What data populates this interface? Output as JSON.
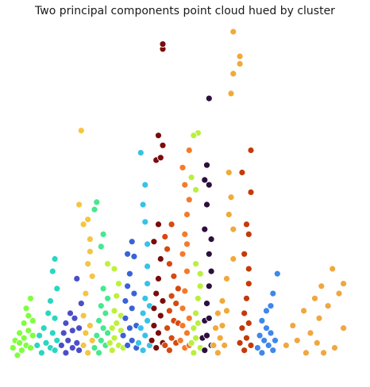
{
  "chart_data": {
    "type": "scatter",
    "title": "Two principal components point cloud hued by cluster",
    "xlabel": "",
    "ylabel": "",
    "axes_visible": false,
    "grid": false,
    "legend": "none",
    "xlim": [
      0,
      16
    ],
    "ylim": [
      0,
      14
    ],
    "series": [
      {
        "color": "#7fff3f",
        "points": [
          [
            0.3,
            1.2
          ],
          [
            0.4,
            1.5
          ],
          [
            0.5,
            0.9
          ],
          [
            0.6,
            1.4
          ],
          [
            0.6,
            1.8
          ],
          [
            0.7,
            1.1
          ],
          [
            0.8,
            2.2
          ],
          [
            0.8,
            1.6
          ],
          [
            0.9,
            2.8
          ],
          [
            0.9,
            1.3
          ],
          [
            1.0,
            1.9
          ],
          [
            1.0,
            2.5
          ],
          [
            1.1,
            1.2
          ],
          [
            1.1,
            3.2
          ],
          [
            1.2,
            1.7
          ],
          [
            1.2,
            2.3
          ]
        ]
      },
      {
        "color": "#2bd6c1",
        "points": [
          [
            1.4,
            1.3
          ],
          [
            1.5,
            1.7
          ],
          [
            1.6,
            1.0
          ],
          [
            1.7,
            2.0
          ],
          [
            1.8,
            1.4
          ],
          [
            1.9,
            2.6
          ],
          [
            2.0,
            1.2
          ],
          [
            2.0,
            3.1
          ],
          [
            2.1,
            1.8
          ],
          [
            2.1,
            4.3
          ],
          [
            2.2,
            2.4
          ],
          [
            2.2,
            1.1
          ],
          [
            2.3,
            3.6
          ],
          [
            2.3,
            1.5
          ],
          [
            2.2,
            4.8
          ]
        ]
      },
      {
        "color": "#4b4ec8",
        "points": [
          [
            2.5,
            1.3
          ],
          [
            2.6,
            1.8
          ],
          [
            2.7,
            1.0
          ],
          [
            2.7,
            2.2
          ],
          [
            2.8,
            1.5
          ],
          [
            2.9,
            2.6
          ],
          [
            3.0,
            1.2
          ],
          [
            3.0,
            1.9
          ],
          [
            3.1,
            2.4
          ],
          [
            3.2,
            1.4
          ],
          [
            3.3,
            2.0
          ],
          [
            3.3,
            1.1
          ],
          [
            3.4,
            3.0
          ],
          [
            3.2,
            4.0
          ]
        ]
      },
      {
        "color": "#f4c542",
        "points": [
          [
            3.5,
            1.3
          ],
          [
            3.5,
            2.5
          ],
          [
            3.6,
            1.8
          ],
          [
            3.6,
            3.4
          ],
          [
            3.7,
            1.0
          ],
          [
            3.7,
            4.6
          ],
          [
            3.8,
            2.1
          ],
          [
            3.8,
            5.6
          ],
          [
            3.9,
            1.5
          ],
          [
            3.9,
            4.1
          ],
          [
            3.5,
            6.2
          ],
          [
            3.7,
            6.4
          ],
          [
            3.3,
            7.0
          ],
          [
            3.8,
            5.1
          ],
          [
            3.4,
            10.0
          ]
        ]
      },
      {
        "color": "#46e88f",
        "points": [
          [
            4.0,
            1.2
          ],
          [
            4.1,
            1.7
          ],
          [
            4.2,
            2.3
          ],
          [
            4.2,
            1.0
          ],
          [
            4.3,
            2.9
          ],
          [
            4.3,
            1.5
          ],
          [
            4.4,
            3.6
          ],
          [
            4.4,
            2.0
          ],
          [
            4.5,
            1.3
          ],
          [
            4.5,
            2.6
          ],
          [
            4.6,
            3.2
          ],
          [
            4.6,
            1.8
          ],
          [
            4.0,
            6.8
          ],
          [
            4.1,
            7.1
          ],
          [
            4.3,
            5.3
          ],
          [
            4.4,
            5.8
          ]
        ]
      },
      {
        "color": "#bdf13a",
        "points": [
          [
            4.7,
            1.4
          ],
          [
            4.8,
            2.0
          ],
          [
            4.8,
            1.1
          ],
          [
            4.9,
            2.7
          ],
          [
            4.9,
            1.6
          ],
          [
            5.0,
            3.3
          ],
          [
            5.0,
            2.2
          ],
          [
            5.1,
            1.3
          ],
          [
            5.1,
            3.8
          ],
          [
            5.2,
            1.9
          ],
          [
            5.2,
            2.5
          ],
          [
            5.3,
            1.2
          ],
          [
            4.6,
            4.6
          ],
          [
            4.9,
            4.4
          ]
        ]
      },
      {
        "color": "#3a62d8",
        "points": [
          [
            5.3,
            1.7
          ],
          [
            5.4,
            2.4
          ],
          [
            5.4,
            3.1
          ],
          [
            5.5,
            1.3
          ],
          [
            5.5,
            3.7
          ],
          [
            5.6,
            2.0
          ],
          [
            5.6,
            4.2
          ],
          [
            5.7,
            1.5
          ],
          [
            5.7,
            2.8
          ],
          [
            5.8,
            4.9
          ],
          [
            5.8,
            3.4
          ],
          [
            5.9,
            2.1
          ],
          [
            5.9,
            1.2
          ],
          [
            5.7,
            5.5
          ],
          [
            5.5,
            5.0
          ]
        ]
      },
      {
        "color": "#37c2e8",
        "points": [
          [
            6.0,
            1.4
          ],
          [
            6.1,
            2.0
          ],
          [
            6.2,
            2.6
          ],
          [
            6.2,
            1.1
          ],
          [
            6.3,
            3.2
          ],
          [
            6.3,
            1.7
          ],
          [
            6.4,
            3.8
          ],
          [
            6.4,
            2.3
          ],
          [
            6.5,
            1.3
          ],
          [
            6.5,
            2.9
          ],
          [
            6.3,
            6.3
          ],
          [
            6.2,
            7.0
          ],
          [
            6.3,
            7.8
          ],
          [
            6.1,
            9.1
          ],
          [
            6.4,
            5.4
          ],
          [
            6.4,
            4.5
          ]
        ]
      },
      {
        "color": "#7a0c0c",
        "points": [
          [
            6.6,
            1.5
          ],
          [
            6.7,
            2.1
          ],
          [
            6.7,
            2.8
          ],
          [
            6.8,
            1.2
          ],
          [
            6.8,
            3.4
          ],
          [
            6.9,
            1.8
          ],
          [
            6.9,
            4.0
          ],
          [
            7.0,
            2.5
          ],
          [
            7.0,
            4.8
          ],
          [
            7.1,
            1.4
          ],
          [
            7.1,
            3.1
          ],
          [
            6.7,
            5.5
          ],
          [
            6.9,
            6.2
          ],
          [
            6.8,
            8.8
          ],
          [
            7.0,
            8.9
          ],
          [
            7.1,
            9.4
          ],
          [
            6.9,
            9.8
          ],
          [
            7.1,
            13.3
          ],
          [
            7.1,
            13.5
          ]
        ]
      },
      {
        "color": "#d54a10",
        "points": [
          [
            7.2,
            1.3
          ],
          [
            7.3,
            2.0
          ],
          [
            7.4,
            2.7
          ],
          [
            7.4,
            1.1
          ],
          [
            7.5,
            3.3
          ],
          [
            7.5,
            1.6
          ],
          [
            7.6,
            4.1
          ],
          [
            7.6,
            2.3
          ],
          [
            7.7,
            1.4
          ],
          [
            7.7,
            3.0
          ],
          [
            7.8,
            2.2
          ],
          [
            7.8,
            3.6
          ],
          [
            7.3,
            5.2
          ],
          [
            7.5,
            6.2
          ],
          [
            7.2,
            5.7
          ],
          [
            7.4,
            4.6
          ]
        ]
      },
      {
        "color": "#f47a2b",
        "points": [
          [
            7.9,
            1.5
          ],
          [
            8.0,
            2.1
          ],
          [
            8.0,
            2.8
          ],
          [
            8.1,
            1.2
          ],
          [
            8.1,
            3.5
          ],
          [
            8.2,
            1.8
          ],
          [
            8.2,
            4.3
          ],
          [
            8.3,
            2.4
          ],
          [
            8.3,
            1.3
          ],
          [
            8.0,
            5.0
          ],
          [
            8.1,
            5.8
          ],
          [
            8.2,
            6.6
          ],
          [
            8.3,
            7.2
          ],
          [
            8.1,
            7.8
          ],
          [
            8.0,
            8.5
          ],
          [
            8.3,
            9.2
          ],
          [
            8.2,
            5.4
          ]
        ]
      },
      {
        "color": "#b8f03c",
        "points": [
          [
            8.4,
            1.4
          ],
          [
            8.5,
            2.0
          ],
          [
            8.5,
            1.0
          ],
          [
            8.6,
            2.6
          ],
          [
            8.6,
            1.6
          ],
          [
            8.7,
            3.2
          ],
          [
            8.7,
            2.2
          ],
          [
            8.8,
            1.2
          ],
          [
            8.8,
            3.7
          ],
          [
            8.6,
            7.6
          ],
          [
            8.4,
            8.1
          ],
          [
            8.7,
            9.9
          ],
          [
            8.5,
            9.8
          ],
          [
            8.6,
            4.6
          ],
          [
            8.8,
            4.2
          ]
        ]
      },
      {
        "color": "#2d0f3e",
        "points": [
          [
            8.9,
            1.6
          ],
          [
            9.0,
            2.3
          ],
          [
            9.0,
            1.1
          ],
          [
            9.1,
            3.0
          ],
          [
            9.1,
            1.7
          ],
          [
            9.2,
            3.7
          ],
          [
            9.2,
            2.4
          ],
          [
            9.3,
            4.3
          ],
          [
            9.3,
            1.3
          ],
          [
            9.2,
            5.0
          ],
          [
            9.0,
            6.0
          ],
          [
            9.1,
            7.0
          ],
          [
            9.2,
            7.8
          ],
          [
            9.0,
            8.0
          ],
          [
            9.1,
            8.6
          ],
          [
            9.3,
            5.6
          ],
          [
            9.2,
            11.3
          ]
        ]
      },
      {
        "color": "#f0a93a",
        "points": [
          [
            9.4,
            1.3
          ],
          [
            9.5,
            2.0
          ],
          [
            9.6,
            1.0
          ],
          [
            9.6,
            2.6
          ],
          [
            9.7,
            1.6
          ],
          [
            9.8,
            3.1
          ],
          [
            9.8,
            2.1
          ],
          [
            9.9,
            1.3
          ],
          [
            10.0,
            2.7
          ],
          [
            10.0,
            4.0
          ],
          [
            10.1,
            6.6
          ],
          [
            10.2,
            7.3
          ],
          [
            10.1,
            8.3
          ],
          [
            10.3,
            6.0
          ],
          [
            10.3,
            4.8
          ],
          [
            10.2,
            11.5
          ],
          [
            10.3,
            12.3
          ],
          [
            10.6,
            12.7
          ],
          [
            10.6,
            13.0
          ],
          [
            10.3,
            14.0
          ]
        ]
      },
      {
        "color": "#c43a08",
        "points": [
          [
            10.6,
            1.4
          ],
          [
            10.7,
            2.0
          ],
          [
            10.8,
            1.1
          ],
          [
            10.8,
            2.6
          ],
          [
            10.9,
            1.6
          ],
          [
            10.9,
            3.2
          ],
          [
            11.0,
            2.2
          ],
          [
            11.0,
            3.8
          ],
          [
            11.1,
            1.3
          ],
          [
            10.8,
            5.0
          ],
          [
            11.0,
            5.8
          ],
          [
            10.9,
            6.2
          ],
          [
            11.1,
            7.5
          ],
          [
            10.7,
            8.3
          ],
          [
            11.1,
            9.2
          ],
          [
            11.0,
            4.4
          ]
        ]
      },
      {
        "color": "#3f87ea",
        "points": [
          [
            11.4,
            1.2
          ],
          [
            11.5,
            1.7
          ],
          [
            11.6,
            2.3
          ],
          [
            11.6,
            1.0
          ],
          [
            11.7,
            1.5
          ],
          [
            11.8,
            2.0
          ],
          [
            11.8,
            2.7
          ],
          [
            11.9,
            1.3
          ],
          [
            12.0,
            1.8
          ],
          [
            12.0,
            2.9
          ],
          [
            12.1,
            3.4
          ],
          [
            12.1,
            1.1
          ],
          [
            12.3,
            4.2
          ],
          [
            12.2,
            1.5
          ]
        ]
      },
      {
        "color": "#f0a740",
        "points": [
          [
            12.7,
            1.3
          ],
          [
            13.0,
            2.1
          ],
          [
            13.2,
            1.5
          ],
          [
            13.5,
            2.7
          ],
          [
            13.6,
            1.0
          ],
          [
            13.8,
            1.8
          ],
          [
            14.0,
            3.2
          ],
          [
            14.1,
            1.4
          ],
          [
            14.2,
            2.4
          ],
          [
            14.3,
            3.7
          ],
          [
            14.4,
            1.0
          ],
          [
            14.6,
            2.9
          ],
          [
            14.9,
            1.2
          ],
          [
            15.1,
            3.4
          ],
          [
            15.3,
            2.0
          ],
          [
            15.3,
            3.8
          ],
          [
            14.8,
            4.4
          ]
        ]
      }
    ]
  }
}
